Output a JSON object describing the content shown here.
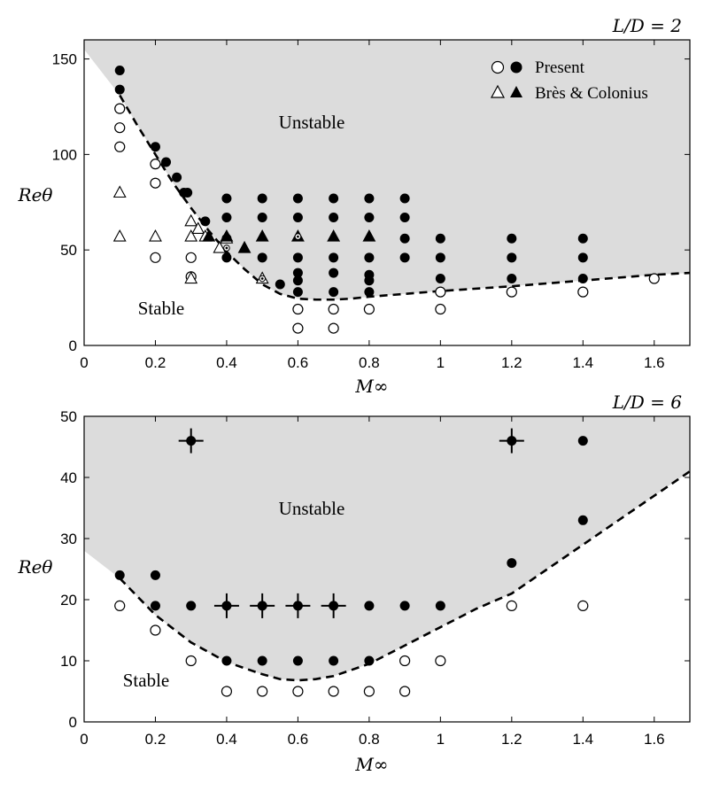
{
  "colors": {
    "unstable_fill": "#dcdcdc",
    "marker": "#000000",
    "axis": "#000000",
    "background": "#ffffff"
  },
  "chart_data": [
    {
      "type": "scatter",
      "panel_label": "L/D = 2",
      "xlabel": "M∞",
      "ylabel": "Reθ",
      "xlim": [
        0,
        1.7
      ],
      "ylim": [
        0,
        160
      ],
      "xticks": [
        "0",
        "0.2",
        "0.4",
        "0.6",
        "0.8",
        "1",
        "1.2",
        "1.4",
        "1.6"
      ],
      "yticks": [
        "0",
        "50",
        "100",
        "150"
      ],
      "region_labels": {
        "unstable": "Unstable",
        "stable": "Stable"
      },
      "legend": {
        "present": "Present",
        "bres": "Brès & Colonius"
      },
      "boundary": {
        "x": [
          0.1,
          0.15,
          0.2,
          0.25,
          0.3,
          0.35,
          0.4,
          0.45,
          0.5,
          0.55,
          0.6,
          0.65,
          0.7,
          0.75,
          0.8,
          0.9,
          1.0,
          1.2,
          1.4,
          1.6,
          1.7
        ],
        "y": [
          131,
          115,
          100,
          85,
          72,
          60,
          49,
          40,
          32,
          27,
          24.5,
          24,
          24,
          24.5,
          25.5,
          27,
          28.5,
          31,
          34,
          37,
          38
        ]
      },
      "unstable_top": {
        "x": [
          0,
          0.1,
          1.7,
          1.7
        ],
        "y": [
          155,
          131,
          38,
          160
        ]
      },
      "present_stable": [
        [
          0.1,
          124
        ],
        [
          0.1,
          114
        ],
        [
          0.1,
          104
        ],
        [
          0.2,
          95
        ],
        [
          0.2,
          85
        ],
        [
          0.2,
          46
        ],
        [
          0.3,
          46
        ],
        [
          0.3,
          36
        ],
        [
          0.6,
          19
        ],
        [
          0.6,
          9
        ],
        [
          0.7,
          19
        ],
        [
          0.7,
          9
        ],
        [
          0.8,
          19
        ],
        [
          1.0,
          28
        ],
        [
          1.0,
          19
        ],
        [
          1.2,
          28
        ],
        [
          1.4,
          28
        ],
        [
          1.6,
          35
        ]
      ],
      "present_unstable": [
        [
          0.1,
          144
        ],
        [
          0.1,
          134
        ],
        [
          0.2,
          104
        ],
        [
          0.23,
          96
        ],
        [
          0.26,
          88
        ],
        [
          0.28,
          80
        ],
        [
          0.29,
          80
        ],
        [
          0.34,
          65
        ],
        [
          0.4,
          77
        ],
        [
          0.4,
          67
        ],
        [
          0.4,
          56
        ],
        [
          0.4,
          46
        ],
        [
          0.5,
          77
        ],
        [
          0.5,
          67
        ],
        [
          0.5,
          46
        ],
        [
          0.55,
          32
        ],
        [
          0.6,
          77
        ],
        [
          0.6,
          67
        ],
        [
          0.6,
          46
        ],
        [
          0.6,
          38
        ],
        [
          0.6,
          34
        ],
        [
          0.6,
          28
        ],
        [
          0.7,
          77
        ],
        [
          0.7,
          67
        ],
        [
          0.7,
          46
        ],
        [
          0.7,
          38
        ],
        [
          0.7,
          28
        ],
        [
          0.8,
          77
        ],
        [
          0.8,
          67
        ],
        [
          0.8,
          46
        ],
        [
          0.8,
          37
        ],
        [
          0.8,
          34
        ],
        [
          0.8,
          28
        ],
        [
          0.9,
          77
        ],
        [
          0.9,
          67
        ],
        [
          0.9,
          56
        ],
        [
          0.9,
          46
        ],
        [
          1.0,
          56
        ],
        [
          1.0,
          46
        ],
        [
          1.0,
          35
        ],
        [
          1.2,
          56
        ],
        [
          1.2,
          46
        ],
        [
          1.2,
          35
        ],
        [
          1.4,
          56
        ],
        [
          1.4,
          46
        ],
        [
          1.4,
          35
        ]
      ],
      "bres_stable": [
        [
          0.1,
          80
        ],
        [
          0.1,
          57
        ],
        [
          0.2,
          57
        ],
        [
          0.3,
          65
        ],
        [
          0.3,
          57
        ],
        [
          0.3,
          35
        ],
        [
          0.32,
          61
        ],
        [
          0.34,
          57
        ],
        [
          0.38,
          51
        ],
        [
          0.4,
          56
        ],
        [
          0.5,
          35
        ]
      ],
      "bres_unstable": [
        [
          0.35,
          57
        ],
        [
          0.4,
          57
        ],
        [
          0.45,
          51
        ],
        [
          0.5,
          57
        ],
        [
          0.6,
          57
        ],
        [
          0.7,
          57
        ],
        [
          0.8,
          57
        ]
      ],
      "dotted_circles": [
        [
          0.4,
          51
        ],
        [
          0.5,
          35
        ],
        [
          0.6,
          57
        ]
      ]
    },
    {
      "type": "scatter",
      "panel_label": "L/D = 6",
      "xlabel": "M∞",
      "ylabel": "Reθ",
      "xlim": [
        0,
        1.7
      ],
      "ylim": [
        0,
        50
      ],
      "xticks": [
        "0",
        "0.2",
        "0.4",
        "0.6",
        "0.8",
        "1",
        "1.2",
        "1.4",
        "1.6"
      ],
      "yticks": [
        "0",
        "10",
        "20",
        "30",
        "40",
        "50"
      ],
      "region_labels": {
        "unstable": "Unstable",
        "stable": "Stable"
      },
      "boundary": {
        "x": [
          0.1,
          0.2,
          0.3,
          0.4,
          0.5,
          0.55,
          0.6,
          0.65,
          0.7,
          0.8,
          0.9,
          1.0,
          1.1,
          1.2,
          1.3,
          1.4,
          1.5,
          1.6,
          1.7
        ],
        "y": [
          23.5,
          17.5,
          13,
          9.8,
          7.8,
          7.0,
          6.8,
          7.0,
          7.5,
          9.5,
          12.5,
          15.5,
          18.5,
          21,
          25,
          29,
          33,
          37,
          41
        ]
      },
      "unstable_top": {
        "x": [
          0,
          0.1,
          1.7,
          1.7
        ],
        "y": [
          28,
          23.5,
          41,
          50
        ]
      },
      "present_stable": [
        [
          0.1,
          19
        ],
        [
          0.2,
          15
        ],
        [
          0.3,
          10
        ],
        [
          0.4,
          5
        ],
        [
          0.5,
          5
        ],
        [
          0.6,
          5
        ],
        [
          0.7,
          5
        ],
        [
          0.8,
          5
        ],
        [
          0.9,
          5
        ],
        [
          0.9,
          10
        ],
        [
          1.0,
          10
        ],
        [
          1.2,
          19
        ],
        [
          1.4,
          19
        ]
      ],
      "present_unstable": [
        [
          0.1,
          24
        ],
        [
          0.2,
          24
        ],
        [
          0.2,
          19
        ],
        [
          0.3,
          19
        ],
        [
          0.4,
          10
        ],
        [
          0.5,
          10
        ],
        [
          0.6,
          10
        ],
        [
          0.7,
          10
        ],
        [
          0.8,
          19
        ],
        [
          0.8,
          10
        ],
        [
          0.9,
          19
        ],
        [
          1.0,
          19
        ],
        [
          1.2,
          26
        ],
        [
          1.4,
          46
        ],
        [
          1.4,
          33
        ]
      ],
      "crossed_unstable": [
        [
          0.3,
          46
        ],
        [
          0.4,
          19
        ],
        [
          0.5,
          19
        ],
        [
          0.6,
          19
        ],
        [
          0.7,
          19
        ],
        [
          1.2,
          46
        ]
      ]
    }
  ]
}
